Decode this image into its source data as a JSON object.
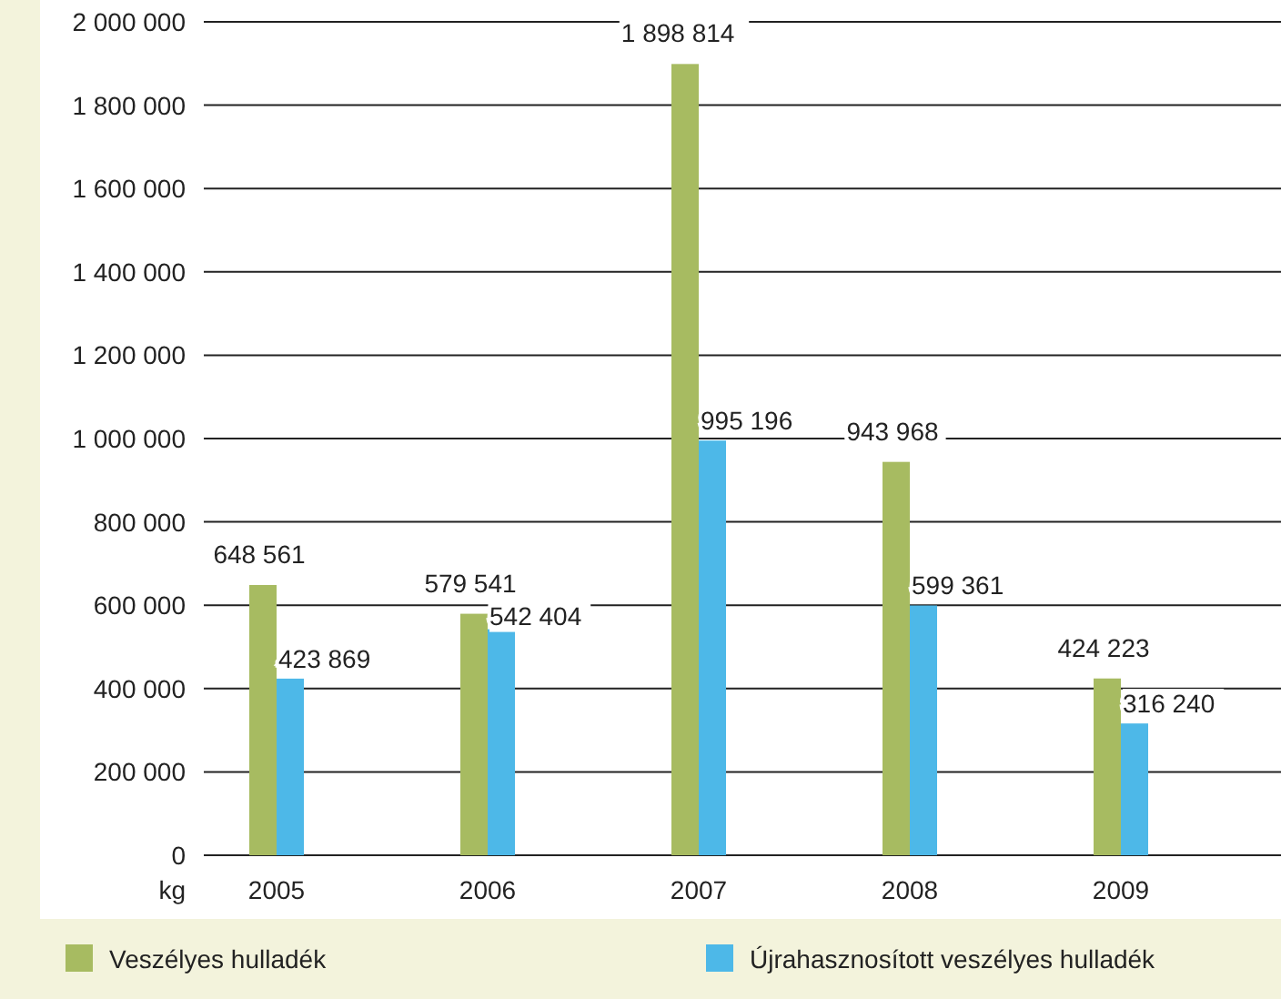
{
  "chart_data": {
    "type": "bar",
    "ylabel": "kg",
    "categories": [
      "2005",
      "2006",
      "2007",
      "2008",
      "2009"
    ],
    "series": [
      {
        "name": "Veszélyes hulladék",
        "color": "#a7bb61",
        "values": [
          648561,
          579541,
          1898814,
          943968,
          424223
        ]
      },
      {
        "name": "Újrahasznosított veszélyes hulladék",
        "color": "#4db8e8",
        "values": [
          423869,
          542404,
          995196,
          599361,
          316240
        ]
      }
    ],
    "ylim": [
      0,
      2000000
    ],
    "yticks": [
      {
        "value": 0,
        "label": "0"
      },
      {
        "value": 200000,
        "label": "200 000"
      },
      {
        "value": 400000,
        "label": "400 000"
      },
      {
        "value": 600000,
        "label": "600 000"
      },
      {
        "value": 800000,
        "label": "800 000"
      },
      {
        "value": 1000000,
        "label": "1 000 000"
      },
      {
        "value": 1200000,
        "label": "1 200 000"
      },
      {
        "value": 1400000,
        "label": "1 400 000"
      },
      {
        "value": 1600000,
        "label": "1 600 000"
      },
      {
        "value": 1800000,
        "label": "1 800 000"
      },
      {
        "value": 2000000,
        "label": "2 000 000"
      }
    ],
    "grid": "y",
    "legend": "bottom",
    "data_labels": true
  }
}
